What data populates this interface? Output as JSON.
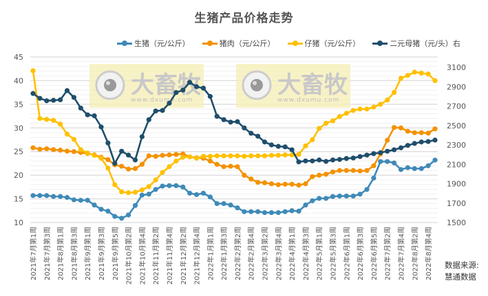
{
  "chart_data": {
    "type": "line",
    "title": "生猪产品价格走势",
    "xlabel": "",
    "ylabel_left": "",
    "ylabel_right": "",
    "ylim_left": [
      10,
      45
    ],
    "yticks_left": [
      10,
      15,
      20,
      25,
      30,
      35,
      40,
      45
    ],
    "ylim_right": [
      1500,
      3100
    ],
    "yticks_right": [
      1500,
      1700,
      1900,
      2100,
      2300,
      2500,
      2700,
      2900,
      3100
    ],
    "grid": true,
    "legend_position": "top",
    "x_tick_labels": [
      "2021年7月第1周",
      "2021年7月第3周",
      "2021年8月第1周",
      "2021年8月第3周",
      "2021年9月第1周",
      "2021年9月第3周",
      "2021年9月第5周",
      "2021年10月第2周",
      "2021年10月第4周",
      "2021年11月第2周",
      "2021年11月第4周",
      "2021年12月第2周",
      "2021年12月第4周",
      "2022年1月第1周",
      "2022年1月第3周",
      "2022年2月第2周",
      "2022年2月第4周",
      "2022年3月第2周",
      "2022年3月第4周",
      "2022年4月第1周",
      "2022年4月第3周",
      "2022年5月第1周",
      "2022年5月第3周",
      "2022年6月第1周",
      "2022年6月第3周",
      "2022年6月第5周",
      "2022年7月第2周",
      "2022年7月第4周",
      "2022年8月第2周",
      "2022年8月第4周"
    ],
    "point_count": 60,
    "series": [
      {
        "name": "生猪（元/公斤）",
        "axis": "left",
        "color": "#3f8ab8",
        "values": [
          15.7,
          15.7,
          15.7,
          15.5,
          15.5,
          15.3,
          14.8,
          14.7,
          14.7,
          13.7,
          12.8,
          12.4,
          11.3,
          10.9,
          11.6,
          13.6,
          15.8,
          16.0,
          17.0,
          17.7,
          17.8,
          17.8,
          17.5,
          16.2,
          15.9,
          16.2,
          15.4,
          14.0,
          14.0,
          13.7,
          13.1,
          12.3,
          12.3,
          12.3,
          12.1,
          12.1,
          12.1,
          12.3,
          12.5,
          12.4,
          13.7,
          14.6,
          15.1,
          15.1,
          15.5,
          15.6,
          15.6,
          15.6,
          16.0,
          17.0,
          19.4,
          22.9,
          22.9,
          22.6,
          21.2,
          21.6,
          21.4,
          21.4,
          22.0,
          23.2
        ]
      },
      {
        "name": "猪肉（元/公斤）",
        "axis": "left",
        "color": "#f39200",
        "values": [
          25.8,
          25.5,
          25.6,
          25.4,
          25.3,
          25.1,
          25.0,
          24.8,
          24.6,
          24.3,
          23.8,
          23.3,
          22.2,
          21.9,
          21.3,
          21.4,
          22.3,
          24.1,
          24.0,
          24.2,
          24.3,
          24.4,
          24.5,
          23.9,
          23.7,
          23.6,
          23.0,
          22.3,
          21.8,
          21.9,
          21.8,
          20.0,
          19.2,
          18.5,
          18.4,
          18.2,
          18.0,
          18.1,
          18.1,
          17.9,
          18.2,
          19.7,
          20.0,
          20.2,
          20.7,
          21.0,
          21.0,
          21.0,
          20.9,
          21.0,
          22.0,
          24.5,
          27.4,
          30.1,
          30.0,
          29.3,
          29.0,
          29.0,
          28.9,
          29.8
        ]
      },
      {
        "name": "仔猪（元/公斤）",
        "axis": "left",
        "color": "#ffc000",
        "values": [
          42.1,
          32.0,
          31.8,
          31.6,
          30.8,
          28.7,
          27.6,
          25.4,
          24.7,
          24.2,
          23.6,
          21.5,
          18.0,
          16.5,
          16.3,
          16.4,
          16.9,
          17.6,
          19.0,
          20.6,
          21.8,
          23.0,
          23.8,
          23.9,
          23.6,
          24.0,
          24.0,
          24.1,
          24.1,
          24.1,
          24.1,
          24.0,
          24.1,
          24.1,
          24.1,
          24.2,
          24.2,
          24.3,
          24.3,
          24.4,
          26.2,
          27.5,
          29.9,
          31.0,
          31.5,
          32.4,
          33.1,
          33.7,
          34.0,
          34.0,
          34.4,
          35.0,
          35.9,
          37.5,
          40.5,
          41.1,
          41.8,
          41.6,
          41.4,
          40.0
        ]
      },
      {
        "name": "二元母猪（元/头）右",
        "axis": "right",
        "color": "#1f4e6b",
        "values": [
          2830,
          2780,
          2755,
          2760,
          2765,
          2860,
          2790,
          2680,
          2610,
          2600,
          2485,
          2320,
          2110,
          2235,
          2195,
          2145,
          2385,
          2560,
          2650,
          2655,
          2730,
          2840,
          2865,
          2945,
          2900,
          2885,
          2800,
          2595,
          2560,
          2535,
          2540,
          2475,
          2420,
          2390,
          2330,
          2300,
          2285,
          2280,
          2250,
          2125,
          2135,
          2135,
          2145,
          2130,
          2145,
          2150,
          2160,
          2165,
          2180,
          2195,
          2210,
          2220,
          2235,
          2250,
          2270,
          2295,
          2315,
          2330,
          2335,
          2350
        ]
      }
    ]
  },
  "header": {
    "title": "生猪产品价格走势"
  },
  "legend": [
    {
      "label": "生猪（元/公斤）",
      "color": "#3f8ab8"
    },
    {
      "label": "猪肉（元/公斤）",
      "color": "#f39200"
    },
    {
      "label": "仔猪（元/公斤）",
      "color": "#ffc000"
    },
    {
      "label": "二元母猪（元/头）右",
      "color": "#1f4e6b"
    }
  ],
  "watermark": {
    "brand": "大畜牧",
    "url": "www.dxumu.com"
  },
  "source": {
    "line1": "数据来源:",
    "line2": "慧通数据"
  }
}
